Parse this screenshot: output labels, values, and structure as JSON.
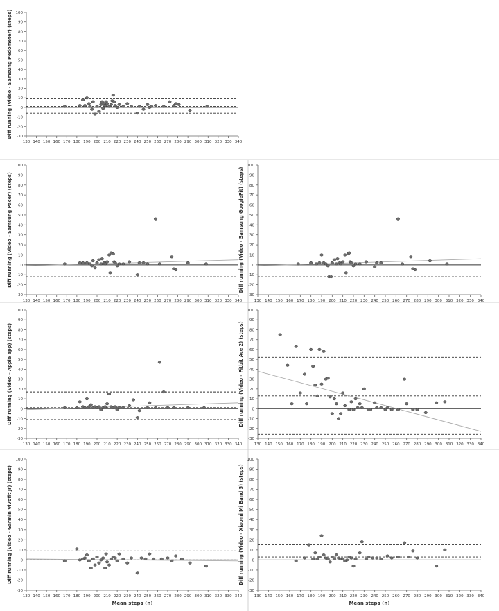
{
  "shared_xlabel": "Mean steps (n)",
  "x_ticks": [
    130,
    140,
    150,
    160,
    170,
    180,
    190,
    200,
    210,
    220,
    230,
    240,
    250,
    260,
    270,
    280,
    290,
    300,
    310,
    320,
    330,
    340
  ],
  "y_ticks": [
    -30,
    -20,
    -10,
    0,
    10,
    20,
    30,
    40,
    50,
    60,
    70,
    80,
    90,
    100
  ],
  "colors": {
    "points": "#6e6e6e",
    "point_stroke": "#3a3a3a",
    "ref_line": "#333333",
    "trend_line": "#aaaaaa",
    "axis": "#666666"
  },
  "chart_data": [
    {
      "type": "scatter",
      "ylabel": "Diff running (Video - Samsung Pedometer) (steps)",
      "xlim": [
        130,
        340
      ],
      "ylim": [
        -30,
        100
      ],
      "mean_diff": 1,
      "loa_upper": 9,
      "loa_lower": -6,
      "trend": null,
      "points": [
        [
          168,
          1
        ],
        [
          183,
          2
        ],
        [
          186,
          8
        ],
        [
          188,
          2
        ],
        [
          190,
          10
        ],
        [
          192,
          4
        ],
        [
          193,
          1
        ],
        [
          195,
          -2
        ],
        [
          196,
          6
        ],
        [
          198,
          -7
        ],
        [
          200,
          1
        ],
        [
          202,
          -4
        ],
        [
          204,
          3
        ],
        [
          205,
          6
        ],
        [
          206,
          -1
        ],
        [
          207,
          4
        ],
        [
          208,
          2
        ],
        [
          209,
          6
        ],
        [
          210,
          4
        ],
        [
          212,
          1
        ],
        [
          214,
          3
        ],
        [
          215,
          7
        ],
        [
          216,
          13
        ],
        [
          217,
          6
        ],
        [
          218,
          2
        ],
        [
          220,
          0
        ],
        [
          222,
          3
        ],
        [
          226,
          1
        ],
        [
          230,
          4
        ],
        [
          234,
          1
        ],
        [
          240,
          -6
        ],
        [
          242,
          1
        ],
        [
          246,
          -2
        ],
        [
          250,
          3
        ],
        [
          252,
          0
        ],
        [
          254,
          1
        ],
        [
          258,
          2
        ],
        [
          266,
          1
        ],
        [
          272,
          6
        ],
        [
          276,
          2
        ],
        [
          278,
          4
        ],
        [
          281,
          3
        ],
        [
          292,
          -3
        ],
        [
          309,
          1
        ]
      ],
      "show_xlabel": false
    },
    {
      "type": "scatter",
      "ylabel": "Diff running (Video - Samsung Pacer) (steps)",
      "xlim": [
        130,
        340
      ],
      "ylim": [
        -30,
        100
      ],
      "mean_diff": 1,
      "loa_upper": 17,
      "loa_lower": -12,
      "trend": [
        [
          130,
          -1
        ],
        [
          340,
          5
        ]
      ],
      "points": [
        [
          168,
          1
        ],
        [
          183,
          2
        ],
        [
          186,
          2
        ],
        [
          190,
          2
        ],
        [
          193,
          1
        ],
        [
          195,
          -1
        ],
        [
          196,
          4
        ],
        [
          198,
          -3
        ],
        [
          200,
          2
        ],
        [
          202,
          5
        ],
        [
          204,
          1
        ],
        [
          205,
          6
        ],
        [
          207,
          2
        ],
        [
          208,
          1
        ],
        [
          210,
          3
        ],
        [
          212,
          10
        ],
        [
          213,
          -8
        ],
        [
          214,
          12
        ],
        [
          216,
          11
        ],
        [
          217,
          3
        ],
        [
          218,
          2
        ],
        [
          220,
          -1
        ],
        [
          222,
          1
        ],
        [
          226,
          1
        ],
        [
          232,
          3
        ],
        [
          240,
          -10
        ],
        [
          242,
          2
        ],
        [
          246,
          2
        ],
        [
          250,
          1
        ],
        [
          258,
          46
        ],
        [
          262,
          1
        ],
        [
          274,
          8
        ],
        [
          276,
          -4
        ],
        [
          278,
          -5
        ],
        [
          290,
          2
        ],
        [
          308,
          1
        ]
      ],
      "show_xlabel": false
    },
    {
      "type": "scatter",
      "ylabel": "Diff running (Video - Samsung GoogleFit) (steps)",
      "xlim": [
        130,
        340
      ],
      "ylim": [
        -30,
        100
      ],
      "mean_diff": 1,
      "loa_upper": 17,
      "loa_lower": -12,
      "trend": [
        [
          130,
          -1
        ],
        [
          340,
          6
        ]
      ],
      "points": [
        [
          168,
          1
        ],
        [
          180,
          2
        ],
        [
          185,
          1
        ],
        [
          188,
          2
        ],
        [
          190,
          10
        ],
        [
          192,
          2
        ],
        [
          194,
          1
        ],
        [
          196,
          -1
        ],
        [
          197,
          -12
        ],
        [
          199,
          -12
        ],
        [
          200,
          2
        ],
        [
          202,
          5
        ],
        [
          204,
          1
        ],
        [
          205,
          6
        ],
        [
          207,
          2
        ],
        [
          208,
          1
        ],
        [
          210,
          3
        ],
        [
          212,
          10
        ],
        [
          213,
          -8
        ],
        [
          215,
          11
        ],
        [
          216,
          12
        ],
        [
          217,
          3
        ],
        [
          218,
          2
        ],
        [
          220,
          -1
        ],
        [
          222,
          1
        ],
        [
          226,
          1
        ],
        [
          232,
          3
        ],
        [
          240,
          -2
        ],
        [
          242,
          2
        ],
        [
          246,
          2
        ],
        [
          262,
          46
        ],
        [
          266,
          1
        ],
        [
          274,
          8
        ],
        [
          276,
          -4
        ],
        [
          278,
          -5
        ],
        [
          292,
          4
        ],
        [
          308,
          1
        ]
      ],
      "show_xlabel": false
    },
    {
      "type": "scatter",
      "ylabel": "Diff running (Video - Apple app) (steps)",
      "xlim": [
        130,
        340
      ],
      "ylim": [
        -30,
        100
      ],
      "mean_diff": 1,
      "loa_upper": 17,
      "loa_lower": -11,
      "trend": [
        [
          130,
          -1
        ],
        [
          340,
          6
        ]
      ],
      "points": [
        [
          168,
          1
        ],
        [
          180,
          1
        ],
        [
          183,
          7
        ],
        [
          186,
          2
        ],
        [
          188,
          1
        ],
        [
          190,
          10
        ],
        [
          192,
          2
        ],
        [
          194,
          4
        ],
        [
          196,
          1
        ],
        [
          198,
          2
        ],
        [
          200,
          1
        ],
        [
          202,
          2
        ],
        [
          204,
          -1
        ],
        [
          206,
          1
        ],
        [
          208,
          2
        ],
        [
          210,
          5
        ],
        [
          212,
          15
        ],
        [
          214,
          2
        ],
        [
          216,
          1
        ],
        [
          218,
          2
        ],
        [
          220,
          -1
        ],
        [
          222,
          1
        ],
        [
          226,
          1
        ],
        [
          232,
          3
        ],
        [
          236,
          9
        ],
        [
          240,
          -9
        ],
        [
          242,
          -2
        ],
        [
          250,
          1
        ],
        [
          252,
          6
        ],
        [
          258,
          1
        ],
        [
          262,
          47
        ],
        [
          266,
          17
        ],
        [
          270,
          1
        ],
        [
          276,
          1
        ],
        [
          290,
          1
        ],
        [
          306,
          1
        ]
      ],
      "show_xlabel": false
    },
    {
      "type": "scatter",
      "ylabel": "Diff running (Video - Fitbit Ace 2) (steps)",
      "xlim": [
        130,
        340
      ],
      "ylim": [
        -30,
        100
      ],
      "mean_diff": 13,
      "loa_upper": 52,
      "loa_lower": -26,
      "trend": [
        [
          130,
          38
        ],
        [
          340,
          -23
        ]
      ],
      "points": [
        [
          151,
          75
        ],
        [
          158,
          44
        ],
        [
          162,
          5
        ],
        [
          166,
          63
        ],
        [
          170,
          16
        ],
        [
          174,
          35
        ],
        [
          176,
          5
        ],
        [
          180,
          60
        ],
        [
          182,
          43
        ],
        [
          184,
          24
        ],
        [
          186,
          13
        ],
        [
          188,
          60
        ],
        [
          190,
          25
        ],
        [
          192,
          58
        ],
        [
          194,
          30
        ],
        [
          196,
          31
        ],
        [
          198,
          12
        ],
        [
          200,
          -5
        ],
        [
          202,
          10
        ],
        [
          204,
          5
        ],
        [
          206,
          -10
        ],
        [
          208,
          -5
        ],
        [
          210,
          16
        ],
        [
          212,
          3
        ],
        [
          216,
          -1
        ],
        [
          218,
          7
        ],
        [
          220,
          -1
        ],
        [
          222,
          10
        ],
        [
          224,
          1
        ],
        [
          226,
          5
        ],
        [
          228,
          1
        ],
        [
          230,
          20
        ],
        [
          234,
          -1
        ],
        [
          236,
          -1
        ],
        [
          240,
          6
        ],
        [
          242,
          1
        ],
        [
          246,
          1
        ],
        [
          250,
          -1
        ],
        [
          252,
          1
        ],
        [
          256,
          -1
        ],
        [
          262,
          -1
        ],
        [
          268,
          30
        ],
        [
          270,
          5
        ],
        [
          276,
          -1
        ],
        [
          280,
          -1
        ],
        [
          288,
          -4
        ],
        [
          298,
          6
        ],
        [
          306,
          7
        ]
      ],
      "show_xlabel": false
    },
    {
      "type": "scatter",
      "ylabel": "Diff running (Video - Garmin Vivofit Jr) (steps)",
      "xlim": [
        130,
        340
      ],
      "ylim": [
        -30,
        100
      ],
      "mean_diff": 0,
      "loa_upper": 9,
      "loa_lower": -9,
      "trend": [
        [
          130,
          1
        ],
        [
          340,
          -1
        ]
      ],
      "points": [
        [
          168,
          -1
        ],
        [
          180,
          11
        ],
        [
          183,
          0
        ],
        [
          186,
          1
        ],
        [
          188,
          2
        ],
        [
          190,
          5
        ],
        [
          192,
          -1
        ],
        [
          194,
          -8
        ],
        [
          196,
          1
        ],
        [
          198,
          -5
        ],
        [
          200,
          3
        ],
        [
          202,
          -3
        ],
        [
          204,
          0
        ],
        [
          206,
          2
        ],
        [
          208,
          -8
        ],
        [
          209,
          6
        ],
        [
          210,
          -2
        ],
        [
          212,
          -5
        ],
        [
          214,
          1
        ],
        [
          216,
          3
        ],
        [
          218,
          2
        ],
        [
          220,
          -1
        ],
        [
          222,
          6
        ],
        [
          226,
          1
        ],
        [
          230,
          -3
        ],
        [
          234,
          2
        ],
        [
          240,
          -13
        ],
        [
          244,
          2
        ],
        [
          248,
          1
        ],
        [
          252,
          6
        ],
        [
          256,
          1
        ],
        [
          264,
          1
        ],
        [
          270,
          2
        ],
        [
          274,
          -1
        ],
        [
          278,
          4
        ],
        [
          284,
          1
        ],
        [
          292,
          -3
        ],
        [
          308,
          -6
        ]
      ],
      "show_xlabel": true
    },
    {
      "type": "scatter",
      "ylabel": "Diff running (Video - Xiaomi Mi Band 5) (steps)",
      "xlim": [
        130,
        340
      ],
      "ylim": [
        -30,
        100
      ],
      "mean_diff": 3,
      "loa_upper": 15,
      "loa_lower": -9,
      "trend": [
        [
          130,
          2
        ],
        [
          340,
          2
        ]
      ],
      "points": [
        [
          166,
          -1
        ],
        [
          174,
          2
        ],
        [
          178,
          15
        ],
        [
          182,
          1
        ],
        [
          184,
          7
        ],
        [
          186,
          1
        ],
        [
          188,
          3
        ],
        [
          190,
          24
        ],
        [
          192,
          5
        ],
        [
          194,
          2
        ],
        [
          196,
          1
        ],
        [
          198,
          -2
        ],
        [
          200,
          3
        ],
        [
          202,
          1
        ],
        [
          204,
          5
        ],
        [
          206,
          2
        ],
        [
          208,
          1
        ],
        [
          210,
          1
        ],
        [
          212,
          -1
        ],
        [
          214,
          0
        ],
        [
          216,
          3
        ],
        [
          218,
          2
        ],
        [
          220,
          -6
        ],
        [
          222,
          1
        ],
        [
          226,
          7
        ],
        [
          228,
          18
        ],
        [
          232,
          1
        ],
        [
          234,
          3
        ],
        [
          238,
          2
        ],
        [
          242,
          2
        ],
        [
          246,
          1
        ],
        [
          252,
          4
        ],
        [
          256,
          2
        ],
        [
          262,
          3
        ],
        [
          268,
          17
        ],
        [
          272,
          3
        ],
        [
          276,
          9
        ],
        [
          280,
          2
        ],
        [
          298,
          -6
        ],
        [
          306,
          10
        ]
      ],
      "show_xlabel": true
    }
  ]
}
